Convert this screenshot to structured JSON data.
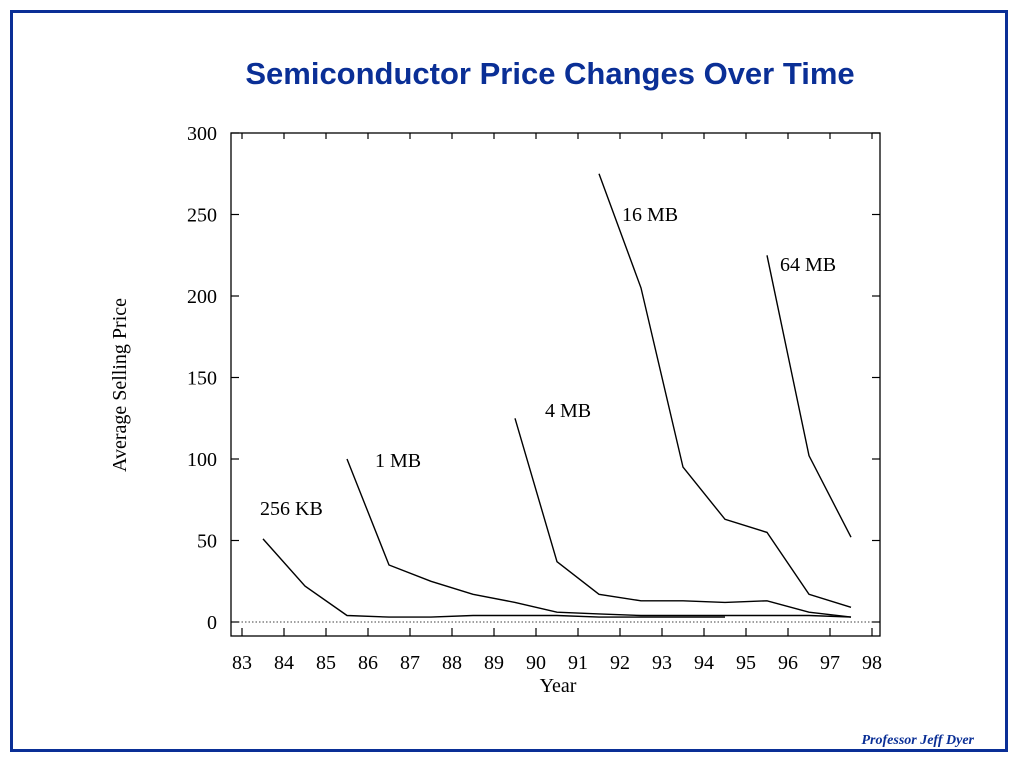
{
  "slide": {
    "title": "Semiconductor Price Changes Over Time",
    "footer": "Professor Jeff Dyer",
    "accent_color": "#0a2f96"
  },
  "chart_data": {
    "type": "line",
    "title": "",
    "xlabel": "Year",
    "ylabel": "Average Selling Price",
    "xlim": [
      83,
      98
    ],
    "ylim": [
      0,
      300
    ],
    "x_ticks": [
      "83",
      "84",
      "85",
      "86",
      "87",
      "88",
      "89",
      "90",
      "91",
      "92",
      "93",
      "94",
      "95",
      "96",
      "97",
      "98"
    ],
    "y_ticks": [
      "0",
      "50",
      "100",
      "150",
      "200",
      "250",
      "300"
    ],
    "grid": false,
    "reference_line": {
      "y": 0,
      "style": "dotted"
    },
    "series": [
      {
        "name": "256 KB",
        "x": [
          83.5,
          84.5,
          85.5,
          86.5,
          87.5,
          88.5,
          89.5,
          90.5,
          91.5,
          92.5,
          93.5,
          94.5
        ],
        "y": [
          51,
          22,
          4,
          3,
          3,
          4,
          4,
          4,
          3,
          3,
          3,
          3
        ]
      },
      {
        "name": "1 MB",
        "x": [
          85.5,
          86.5,
          87.5,
          88.5,
          89.5,
          90.5,
          91.5,
          92.5,
          93.5,
          94.5,
          95.5,
          96.5,
          97.5
        ],
        "y": [
          100,
          35,
          25,
          17,
          12,
          6,
          5,
          4,
          4,
          4,
          4,
          4,
          3
        ]
      },
      {
        "name": "4 MB",
        "x": [
          89.5,
          90.5,
          91.5,
          92.5,
          93.5,
          94.5,
          95.5,
          96.5,
          97.5
        ],
        "y": [
          125,
          37,
          17,
          13,
          13,
          12,
          13,
          6,
          3
        ]
      },
      {
        "name": "16 MB",
        "x": [
          91.5,
          92.5,
          93.5,
          94.5,
          95.5,
          96.5,
          97.5
        ],
        "y": [
          275,
          205,
          95,
          63,
          55,
          17,
          9
        ]
      },
      {
        "name": "64 MB",
        "x": [
          95.5,
          96.5,
          97.5
        ],
        "y": [
          225,
          102,
          52
        ]
      }
    ]
  }
}
